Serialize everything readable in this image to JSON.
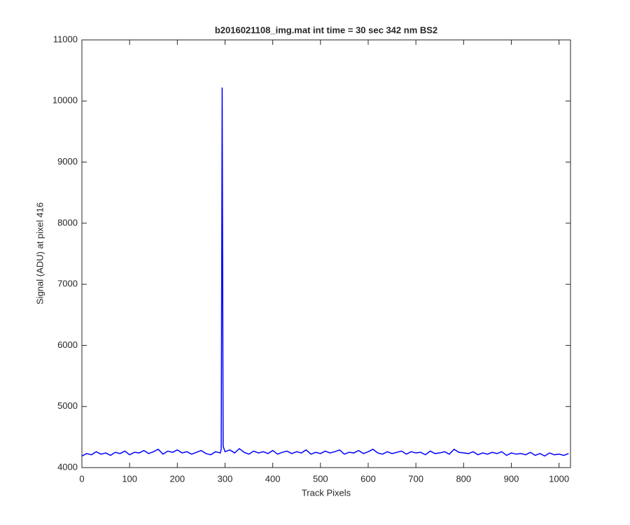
{
  "chart_data": {
    "type": "line",
    "title": "b2016021108_img.mat int time = 30 sec  342 nm BS2",
    "xlabel": "Track Pixels",
    "ylabel": "Signal (ADU) at pixel 416",
    "color": "#0000ff",
    "x": [
      0,
      10,
      20,
      30,
      40,
      50,
      60,
      70,
      80,
      90,
      100,
      110,
      120,
      130,
      140,
      150,
      160,
      170,
      180,
      190,
      200,
      210,
      220,
      230,
      240,
      250,
      260,
      270,
      280,
      290,
      292,
      294,
      296,
      300,
      310,
      320,
      330,
      340,
      350,
      360,
      370,
      380,
      390,
      400,
      410,
      420,
      430,
      440,
      450,
      460,
      470,
      480,
      490,
      500,
      510,
      520,
      530,
      540,
      550,
      560,
      570,
      580,
      590,
      600,
      610,
      620,
      630,
      640,
      650,
      660,
      670,
      680,
      690,
      700,
      710,
      720,
      730,
      740,
      750,
      760,
      770,
      780,
      790,
      800,
      810,
      820,
      830,
      840,
      850,
      860,
      870,
      880,
      890,
      900,
      910,
      920,
      930,
      940,
      950,
      960,
      970,
      980,
      990,
      1000,
      1010,
      1020
    ],
    "values": [
      4190,
      4230,
      4210,
      4260,
      4220,
      4240,
      4200,
      4250,
      4230,
      4270,
      4210,
      4250,
      4240,
      4280,
      4230,
      4260,
      4300,
      4220,
      4270,
      4250,
      4290,
      4240,
      4260,
      4220,
      4250,
      4280,
      4230,
      4210,
      4260,
      4240,
      4300,
      10220,
      4350,
      4260,
      4290,
      4240,
      4310,
      4250,
      4220,
      4270,
      4240,
      4260,
      4230,
      4280,
      4220,
      4250,
      4270,
      4230,
      4260,
      4240,
      4290,
      4220,
      4250,
      4230,
      4270,
      4240,
      4260,
      4290,
      4220,
      4250,
      4240,
      4280,
      4230,
      4260,
      4300,
      4240,
      4220,
      4260,
      4230,
      4250,
      4270,
      4220,
      4260,
      4240,
      4250,
      4210,
      4270,
      4230,
      4240,
      4260,
      4220,
      4300,
      4250,
      4240,
      4230,
      4260,
      4210,
      4240,
      4220,
      4250,
      4230,
      4260,
      4200,
      4240,
      4220,
      4230,
      4210,
      4250,
      4200,
      4230,
      4190,
      4240,
      4210,
      4220,
      4200,
      4230
    ],
    "xlim": [
      0,
      1024
    ],
    "ylim": [
      4000,
      11000
    ],
    "xticks": [
      0,
      100,
      200,
      300,
      400,
      500,
      600,
      700,
      800,
      900,
      1000
    ],
    "yticks": [
      4000,
      5000,
      6000,
      7000,
      8000,
      9000,
      10000,
      11000
    ]
  }
}
